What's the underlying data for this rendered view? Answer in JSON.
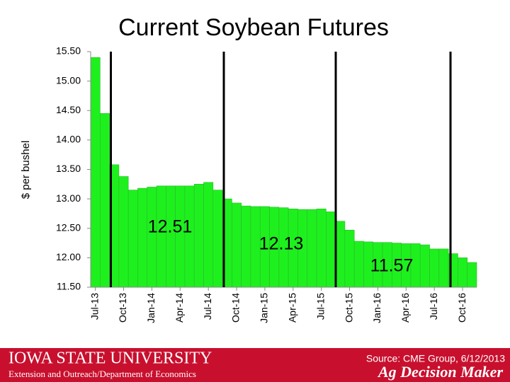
{
  "chart_data": {
    "type": "bar",
    "title": "Current Soybean Futures",
    "y_label": "$ per bushel",
    "categories": [
      "Jul-13",
      null,
      null,
      "Oct-13",
      null,
      null,
      "Jan-14",
      null,
      null,
      "Apr-14",
      null,
      null,
      "Jul-14",
      null,
      null,
      "Oct-14",
      null,
      null,
      "Jan-15",
      null,
      null,
      "Apr-15",
      null,
      null,
      "Jul-15",
      null,
      null,
      "Oct-15",
      null,
      null,
      "Jan-16",
      null,
      null,
      "Apr-16",
      null,
      null,
      "Jul-16",
      null,
      null,
      "Oct-16",
      null
    ],
    "values": [
      15.4,
      14.45,
      13.58,
      13.38,
      13.15,
      13.18,
      13.2,
      13.22,
      13.22,
      13.22,
      13.22,
      13.25,
      13.28,
      13.15,
      13.0,
      12.93,
      12.88,
      12.87,
      12.87,
      12.86,
      12.85,
      12.83,
      12.82,
      12.82,
      12.83,
      12.78,
      12.62,
      12.47,
      12.28,
      12.27,
      12.26,
      12.26,
      12.25,
      12.24,
      12.24,
      12.22,
      12.15,
      12.15,
      12.07,
      12.0,
      11.92
    ],
    "color": "#1ef01e",
    "ylim": [
      11.5,
      15.5
    ],
    "yticks": [
      {
        "value": 11.5,
        "label": "11.50"
      },
      {
        "value": 12,
        "label": "12.00"
      },
      {
        "value": 12.5,
        "label": "12.50"
      },
      {
        "value": 13,
        "label": "13.00"
      },
      {
        "value": 13.5,
        "label": "13.50"
      },
      {
        "value": 14,
        "label": "14.00"
      },
      {
        "value": 14.5,
        "label": "14.50"
      },
      {
        "value": 15,
        "label": "15.00"
      },
      {
        "value": 15.5,
        "label": "15.50"
      }
    ],
    "annotations": [
      "12.51",
      "12.13",
      "11.57"
    ]
  },
  "footer": {
    "university": "Iowa State University",
    "department": "Extension and Outreach/Department of Economics",
    "source": "Source: CME Group, 6/12/2013",
    "brand": "Ag Decision Maker"
  }
}
